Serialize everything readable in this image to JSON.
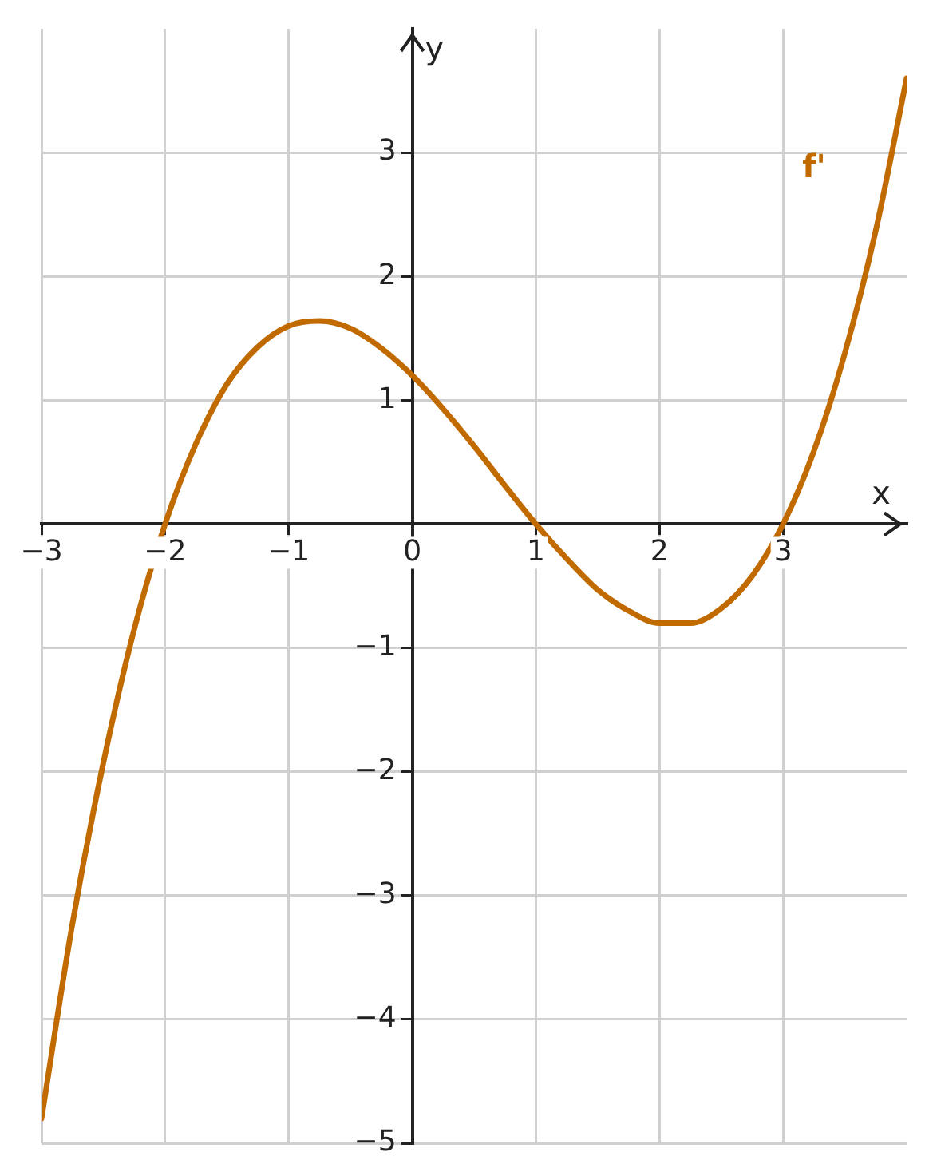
{
  "chart_data": {
    "type": "line",
    "xlabel": "x",
    "ylabel": "y",
    "xlim": [
      -3,
      4
    ],
    "ylim": [
      -5,
      4
    ],
    "xticks": [
      -3,
      -2,
      -1,
      0,
      1,
      2,
      3
    ],
    "yticks": [
      -5,
      -4,
      -3,
      -2,
      -1,
      {
        "value": 0,
        "label": null
      },
      1,
      2,
      3
    ],
    "grid": true,
    "legend": false,
    "marker": "none",
    "line_style": "solid",
    "series": [
      {
        "name": "f'",
        "color": "#c06a00",
        "x": [
          -3,
          -2.75,
          -2.5,
          -2.25,
          -2,
          -1.75,
          -1.5,
          -1.25,
          -1,
          -0.75,
          -0.5,
          -0.25,
          0,
          0.25,
          0.5,
          0.75,
          1,
          1.25,
          1.5,
          1.75,
          2,
          2.25,
          2.5,
          2.75,
          3,
          3.25,
          3.5,
          3.75,
          4
        ],
        "values": [
          -4.8,
          -3.23,
          -1.93,
          -0.85,
          0,
          0.65,
          1.13,
          1.43,
          1.6,
          1.64,
          1.58,
          1.42,
          1.2,
          0.93,
          0.63,
          0.31,
          0,
          -0.28,
          -0.53,
          -0.7,
          -0.8,
          -0.8,
          -0.68,
          -0.42,
          0,
          0.59,
          1.38,
          2.37,
          3.6
        ]
      }
    ]
  }
}
